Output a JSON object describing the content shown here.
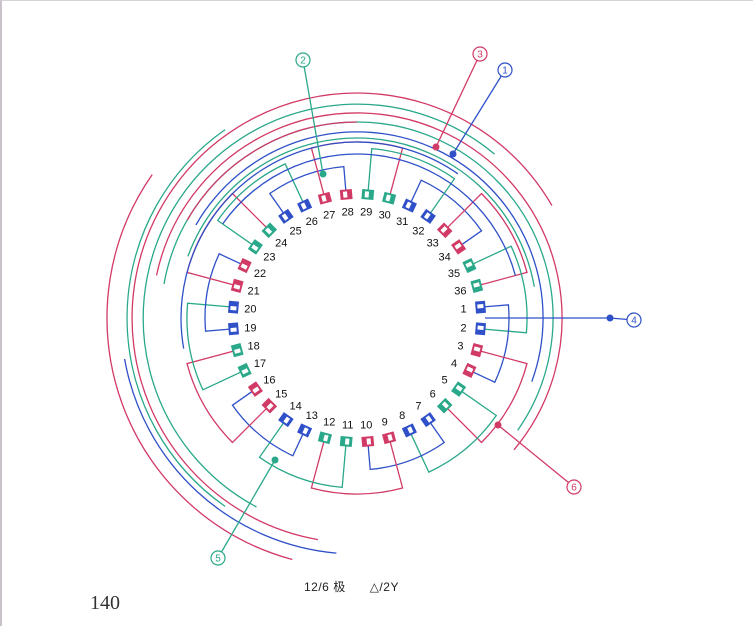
{
  "colors": {
    "red": "#d23a66",
    "green": "#2aa88a",
    "blue": "#2f50c8",
    "frame": "#c9c2c9"
  },
  "slots": {
    "count": 36,
    "labels": [
      "1",
      "2",
      "3",
      "4",
      "5",
      "6",
      "7",
      "8",
      "9",
      "10",
      "11",
      "12",
      "13",
      "14",
      "15",
      "16",
      "17",
      "18",
      "19",
      "20",
      "21",
      "22",
      "23",
      "24",
      "25",
      "26",
      "27",
      "28",
      "29",
      "30",
      "31",
      "32",
      "33",
      "34",
      "35",
      "36"
    ],
    "phase_colors": [
      "blue",
      "blue",
      "red",
      "red",
      "green",
      "green",
      "blue",
      "blue",
      "red",
      "red",
      "green",
      "green",
      "blue",
      "blue",
      "red",
      "red",
      "green",
      "green",
      "blue",
      "blue",
      "red",
      "red",
      "green",
      "green",
      "blue",
      "blue",
      "red",
      "red",
      "green",
      "green",
      "blue",
      "blue",
      "red",
      "red",
      "green",
      "green"
    ]
  },
  "terminals": [
    {
      "label": "1",
      "color": "blue"
    },
    {
      "label": "2",
      "color": "green"
    },
    {
      "label": "3",
      "color": "red"
    },
    {
      "label": "4",
      "color": "blue"
    },
    {
      "label": "5",
      "color": "green"
    },
    {
      "label": "6",
      "color": "red"
    }
  ],
  "caption": {
    "poles": "12/6 极",
    "connection": "△/2Y"
  },
  "page_number": "140"
}
